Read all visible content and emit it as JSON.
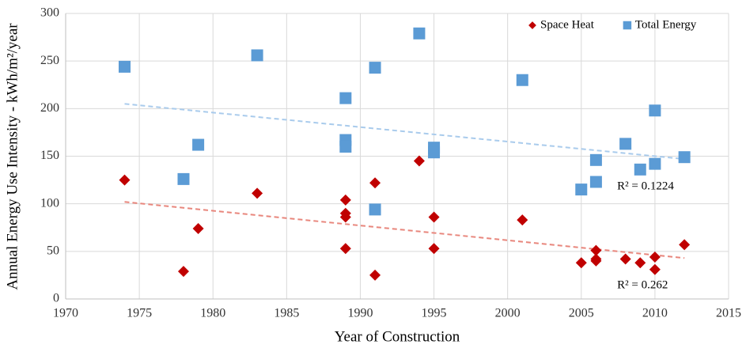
{
  "chart_data": {
    "type": "scatter",
    "xlabel": "Year of Construction",
    "ylabel": "Annual Energy Use Intensity - kWh/m²/year",
    "xlim": [
      1970,
      2015
    ],
    "xticks": [
      1970,
      1975,
      1980,
      1985,
      1990,
      1995,
      2000,
      2005,
      2010,
      2015
    ],
    "ylim": [
      0,
      300
    ],
    "yticks": [
      0,
      50,
      100,
      150,
      200,
      250,
      300
    ],
    "grid": true,
    "legend": "top-right",
    "series": [
      {
        "name": "Space Heat",
        "color": "#c00000",
        "marker": "diamond",
        "x": [
          1974,
          1978,
          1979,
          1983,
          1989,
          1989,
          1989,
          1989,
          1991,
          1991,
          1994,
          1995,
          1995,
          2001,
          2005,
          2006,
          2006,
          2006,
          2008,
          2009,
          2010,
          2010,
          2012
        ],
        "values": [
          125,
          29,
          74,
          111,
          104,
          90,
          86,
          53,
          122,
          25,
          145,
          86,
          53,
          83,
          38,
          51,
          42,
          40,
          42,
          38,
          44,
          31,
          57
        ]
      },
      {
        "name": "Total Energy",
        "color": "#5b9bd5",
        "marker": "square",
        "x": [
          1974,
          1978,
          1979,
          1983,
          1989,
          1989,
          1989,
          1991,
          1991,
          1994,
          1995,
          1995,
          2001,
          2005,
          2006,
          2006,
          2008,
          2009,
          2010,
          2010,
          2012
        ],
        "values": [
          244,
          126,
          162,
          256,
          211,
          167,
          160,
          243,
          94,
          279,
          159,
          154,
          230,
          115,
          146,
          123,
          163,
          136,
          198,
          142,
          149
        ]
      }
    ],
    "trendlines": [
      {
        "color": "#e8867c",
        "x": [
          1974,
          2012
        ],
        "values": [
          102,
          43
        ],
        "label": "R² = 0.262"
      },
      {
        "color": "#a9cbec",
        "x": [
          1974,
          2012
        ],
        "values": [
          205,
          147
        ],
        "label": "R² = 0.1224"
      }
    ]
  }
}
